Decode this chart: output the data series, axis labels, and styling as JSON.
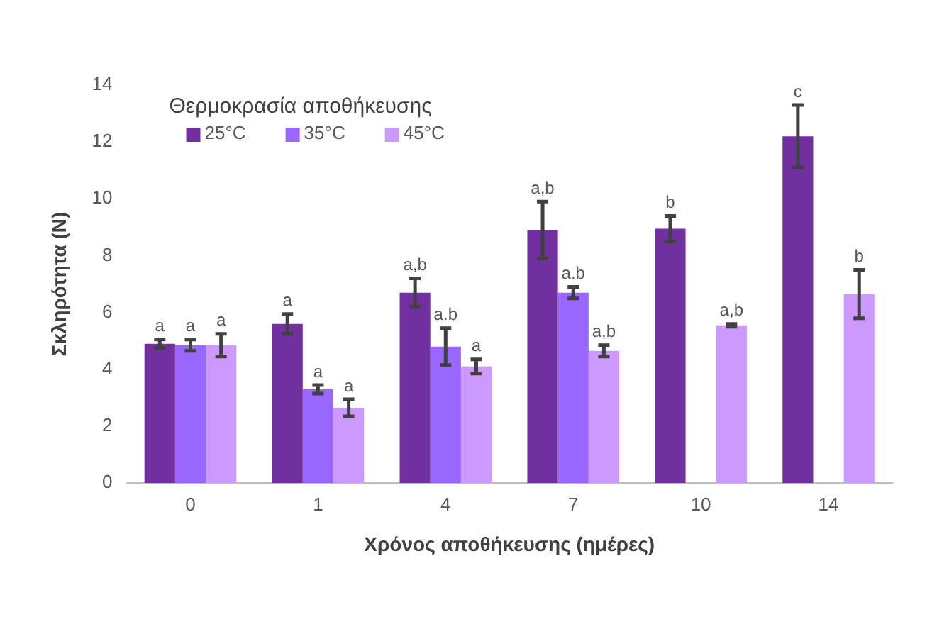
{
  "chart_data": {
    "type": "bar",
    "xlabel": "Χρόνος αποθήκευσης (ημέρες)",
    "ylabel": "Σκληρότητα (N)",
    "legend_title": "Θερμοκρασία αποθήκευσης",
    "legend": "top left",
    "grid": false,
    "categories": [
      "0",
      "1",
      "4",
      "7",
      "10",
      "14"
    ],
    "ylim": [
      0,
      14
    ],
    "yticks": [
      0,
      2,
      4,
      6,
      8,
      10,
      12,
      14
    ],
    "series": [
      {
        "name": "25°C",
        "color": "#7030a0",
        "values": [
          4.9,
          5.6,
          6.7,
          8.9,
          8.95,
          12.2
        ],
        "errors": [
          0.15,
          0.35,
          0.5,
          1.0,
          0.45,
          1.1
        ],
        "value_labels": [
          "a",
          "a",
          "a,b",
          "a,b",
          "b",
          "c"
        ]
      },
      {
        "name": "35°C",
        "color": "#9966ff",
        "values": [
          4.85,
          3.3,
          4.8,
          6.7,
          null,
          null
        ],
        "errors": [
          0.2,
          0.15,
          0.65,
          0.2,
          null,
          null
        ],
        "value_labels": [
          "a",
          "a",
          "a.b",
          "a.b",
          null,
          null
        ]
      },
      {
        "name": "45°C",
        "color": "#cc99ff",
        "values": [
          4.85,
          2.65,
          4.1,
          4.65,
          5.55,
          6.65
        ],
        "errors": [
          0.4,
          0.3,
          0.25,
          0.2,
          0.05,
          0.85
        ],
        "value_labels": [
          "a",
          "a",
          "a",
          "a,b",
          "a,b",
          "b"
        ]
      }
    ]
  }
}
